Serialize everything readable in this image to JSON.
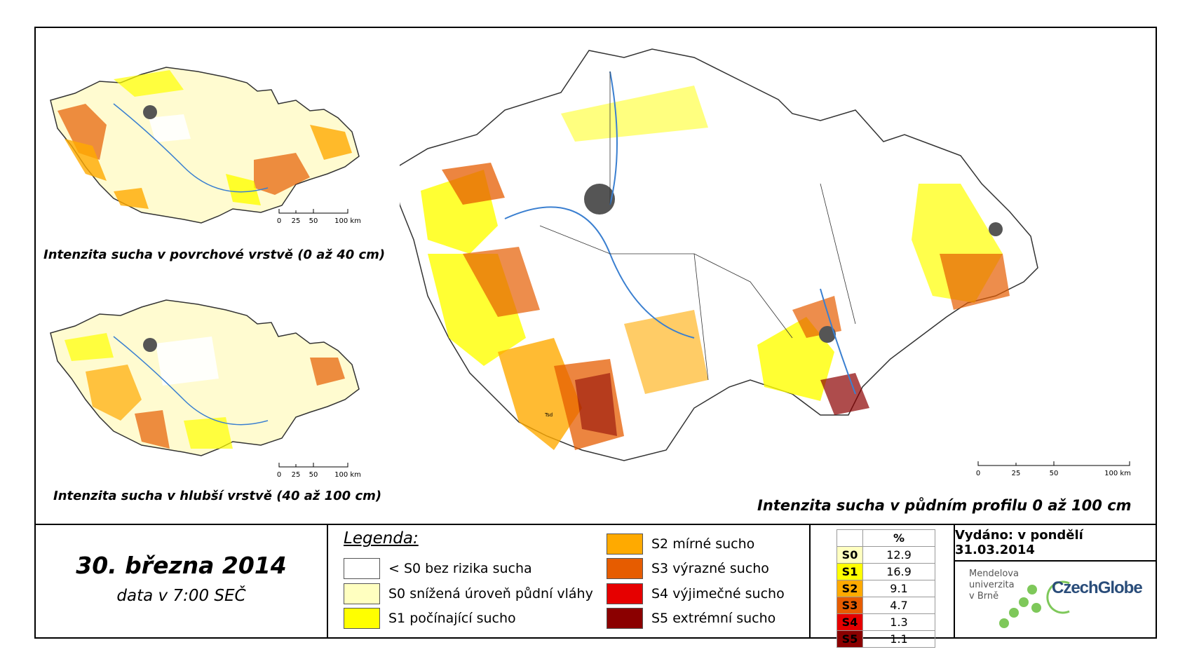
{
  "maps": {
    "surface": {
      "title": "Intenzita sucha v povrchové vrstvě (0 až 40 cm)"
    },
    "deep": {
      "title": "Intenzita sucha v hlubší vrstvě (40 až 100 cm)"
    },
    "profile": {
      "title": "Intenzita sucha v půdním profilu 0 až 100 cm"
    },
    "scale_small": [
      "0",
      "25",
      "50",
      "100 km"
    ],
    "scale_large": [
      "0",
      "25",
      "50",
      "100 km"
    ],
    "city_label": "Tsd"
  },
  "date": {
    "main": "30. března 2014",
    "sub": "data v 7:00 SEČ"
  },
  "legend": {
    "title": "Legenda:",
    "items": [
      {
        "label": "< S0 bez rizika sucha",
        "color": "#ffffff"
      },
      {
        "label": "S0 snížená úroveň půdní vláhy",
        "color": "#ffffc0"
      },
      {
        "label": "S1 počínající sucho",
        "color": "#ffff00"
      },
      {
        "label": "S2 mírné sucho",
        "color": "#ffaa00"
      },
      {
        "label": "S3 výrazné sucho",
        "color": "#e65c00"
      },
      {
        "label": "S4 výjimečné sucho",
        "color": "#e60000"
      },
      {
        "label": "S5 extrémní sucho",
        "color": "#8b0000"
      }
    ]
  },
  "percent_table": {
    "header": "%",
    "rows": [
      {
        "cls": "S0",
        "value": "12.9",
        "color": "#ffffc0"
      },
      {
        "cls": "S1",
        "value": "16.9",
        "color": "#ffff00"
      },
      {
        "cls": "S2",
        "value": "9.1",
        "color": "#ffaa00"
      },
      {
        "cls": "S3",
        "value": "4.7",
        "color": "#e65c00"
      },
      {
        "cls": "S4",
        "value": "1.3",
        "color": "#e60000"
      },
      {
        "cls": "S5",
        "value": "1.1",
        "color": "#8b0000"
      }
    ]
  },
  "issued": "Vydáno: v pondělí 31.03.2014",
  "logos": {
    "mendel": [
      "Mendelova",
      "univerzita",
      "v Brně"
    ],
    "czechglobe": "CzechGlobe"
  }
}
